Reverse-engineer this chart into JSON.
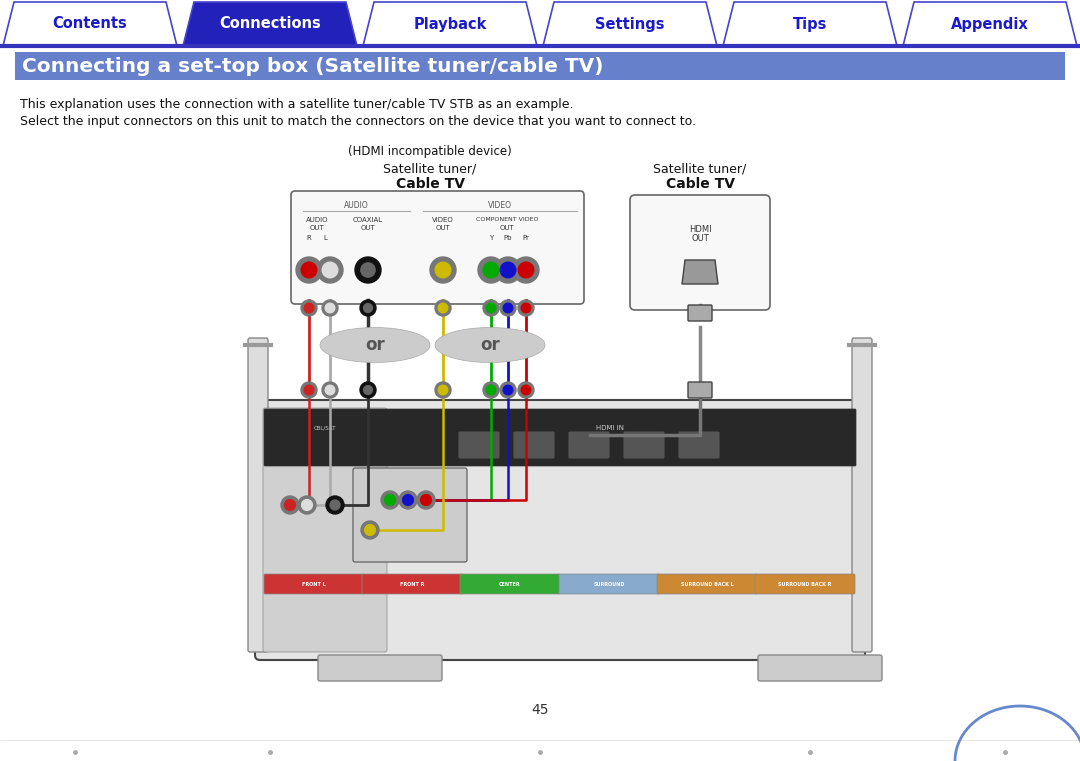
{
  "tab_labels": [
    "Contents",
    "Connections",
    "Playback",
    "Settings",
    "Tips",
    "Appendix"
  ],
  "active_tab": 1,
  "tab_bg_active": "#2222bb",
  "tab_bg_inactive": "#ffffff",
  "tab_text_active": "#ffffff",
  "tab_text_inactive": "#1a1acc",
  "tab_border_color": "#4444cc",
  "tab_line_color": "#3333bb",
  "title_text": "Connecting a set-top box (Satellite tuner/cable TV)",
  "title_bg": "#6680cc",
  "title_text_color": "#ffffff",
  "body_text1": "This explanation uses the connection with a satellite tuner/cable TV STB as an example.",
  "body_text2": "Select the input connectors on this unit to match the connectors on the device that you want to connect to.",
  "page_number": "45",
  "bg_color": "#ffffff",
  "diagram_label_hdmi_inc": "(HDMI incompatible device)",
  "diagram_label_sat1_line1": "Satellite tuner/",
  "diagram_label_sat1_line2": "Cable TV",
  "diagram_label_sat2_line1": "Satellite tuner/",
  "diagram_label_sat2_line2": "Cable TV"
}
